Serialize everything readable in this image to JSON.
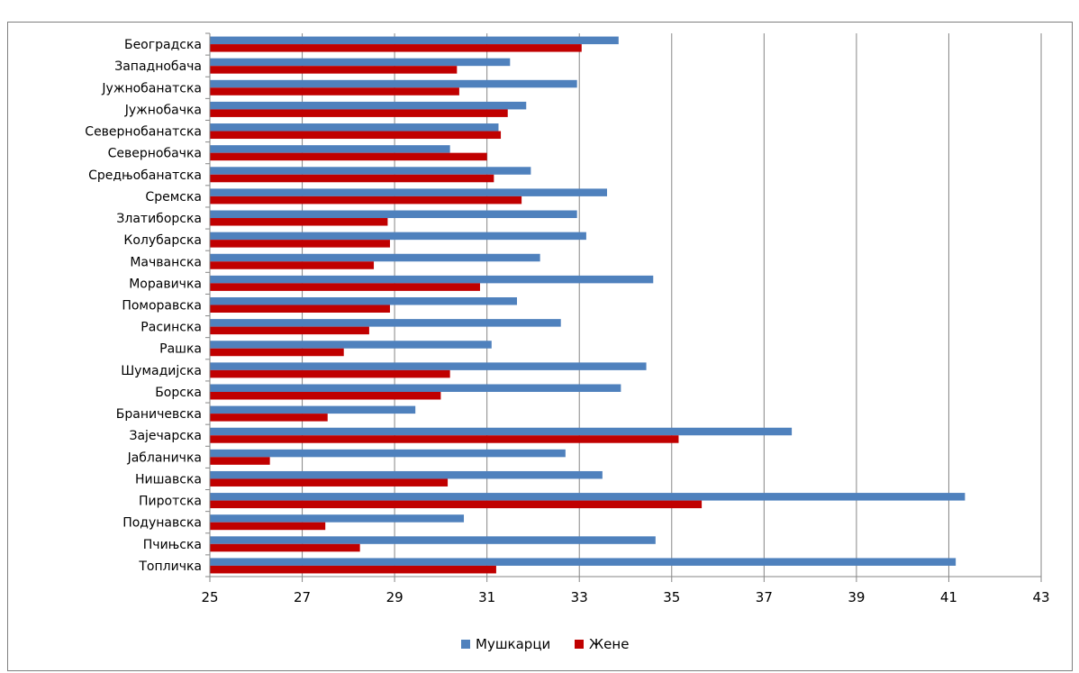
{
  "chart_data": {
    "type": "bar",
    "orientation": "horizontal",
    "title": "",
    "xlabel": "",
    "ylabel": "",
    "xlim": [
      25,
      43
    ],
    "x_ticks": [
      25,
      27,
      29,
      31,
      33,
      35,
      37,
      39,
      41,
      43
    ],
    "grid": true,
    "legend_position": "bottom",
    "categories": [
      "Београдска",
      "Западнобача",
      "Јужнобанатска",
      "Јужнобачка",
      "Севернобанатска",
      "Севернобачка",
      "Средњобанатска",
      "Сремска",
      "Златиборска",
      "Колубарска",
      "Мачванска",
      "Моравичка",
      "Поморавска",
      "Расинска",
      "Рашка",
      "Шумадијска",
      "Борска",
      "Браничевска",
      "Зајечарска",
      "Јабланичка",
      "Нишавска",
      "Пиротска",
      "Подунавска",
      "Пчињска",
      "Топличка"
    ],
    "series": [
      {
        "name": "Мушкарци",
        "color": "#4f81bd",
        "values": [
          33.85,
          31.5,
          32.95,
          31.85,
          31.25,
          30.2,
          31.95,
          33.6,
          32.95,
          33.15,
          32.15,
          34.6,
          31.65,
          32.6,
          31.1,
          34.45,
          33.9,
          29.45,
          37.6,
          32.7,
          33.5,
          41.35,
          30.5,
          34.65,
          41.15
        ]
      },
      {
        "name": "Жене",
        "color": "#c00000",
        "values": [
          33.05,
          30.35,
          30.4,
          31.45,
          31.3,
          31.0,
          31.15,
          31.75,
          28.85,
          28.9,
          28.55,
          30.85,
          28.9,
          28.45,
          27.9,
          30.2,
          30.0,
          27.55,
          35.15,
          26.3,
          30.15,
          35.65,
          27.5,
          28.25,
          31.2
        ]
      }
    ]
  }
}
